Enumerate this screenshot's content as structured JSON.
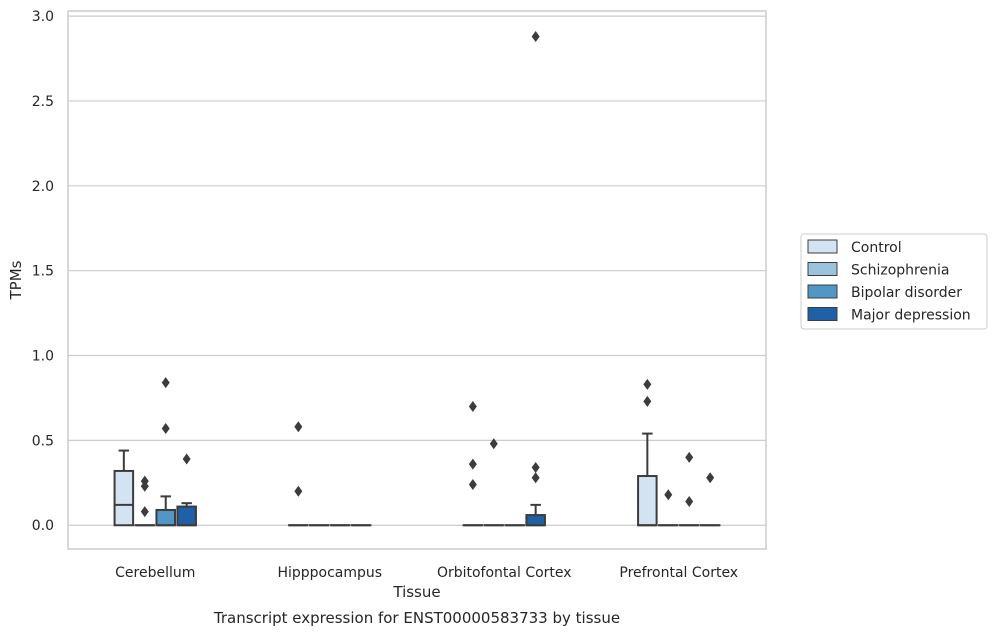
{
  "chart_data": {
    "type": "box",
    "caption": "Transcript expression for ENST00000583733 by tissue",
    "xlabel": "Tissue",
    "ylabel": "TPMs",
    "ylim": [
      -0.14,
      3.03
    ],
    "yticks": [
      0.0,
      0.5,
      1.0,
      1.5,
      2.0,
      2.5,
      3.0
    ],
    "ytick_labels": [
      "0.0",
      "0.5",
      "1.0",
      "1.5",
      "2.0",
      "2.5",
      "3.0"
    ],
    "grid": "horizontal",
    "legend_position": "right",
    "categories": [
      "Cerebellum",
      "Hipppocampus",
      "Orbitofontal Cortex",
      "Prefrontal Cortex"
    ],
    "series": [
      {
        "name": "Control",
        "color": "#d4e3f2",
        "boxes": [
          {
            "q1": 0.0,
            "median": 0.12,
            "q3": 0.32,
            "whisker_low": 0.0,
            "whisker_high": 0.44,
            "fliers": []
          },
          {
            "q1": 0.0,
            "median": 0.0,
            "q3": 0.0,
            "whisker_low": 0.0,
            "whisker_high": 0.0,
            "fliers": [
              0.58,
              0.2
            ]
          },
          {
            "q1": 0.0,
            "median": 0.0,
            "q3": 0.0,
            "whisker_low": 0.0,
            "whisker_high": 0.0,
            "fliers": [
              0.7,
              0.36,
              0.24
            ]
          },
          {
            "q1": 0.0,
            "median": 0.0,
            "q3": 0.29,
            "whisker_low": 0.0,
            "whisker_high": 0.54,
            "fliers": [
              0.83,
              0.73
            ]
          }
        ]
      },
      {
        "name": "Schizophrenia",
        "color": "#9bc3de",
        "boxes": [
          {
            "q1": 0.0,
            "median": 0.0,
            "q3": 0.0,
            "whisker_low": 0.0,
            "whisker_high": 0.0,
            "fliers": [
              0.26,
              0.23,
              0.08
            ]
          },
          {
            "q1": 0.0,
            "median": 0.0,
            "q3": 0.0,
            "whisker_low": 0.0,
            "whisker_high": 0.0,
            "fliers": []
          },
          {
            "q1": 0.0,
            "median": 0.0,
            "q3": 0.0,
            "whisker_low": 0.0,
            "whisker_high": 0.0,
            "fliers": [
              0.48
            ]
          },
          {
            "q1": 0.0,
            "median": 0.0,
            "q3": 0.0,
            "whisker_low": 0.0,
            "whisker_high": 0.0,
            "fliers": [
              0.18
            ]
          }
        ]
      },
      {
        "name": "Bipolar disorder",
        "color": "#5296c6",
        "boxes": [
          {
            "q1": 0.0,
            "median": 0.0,
            "q3": 0.09,
            "whisker_low": 0.0,
            "whisker_high": 0.17,
            "fliers": [
              0.84,
              0.57
            ]
          },
          {
            "q1": 0.0,
            "median": 0.0,
            "q3": 0.0,
            "whisker_low": 0.0,
            "whisker_high": 0.0,
            "fliers": []
          },
          {
            "q1": 0.0,
            "median": 0.0,
            "q3": 0.0,
            "whisker_low": 0.0,
            "whisker_high": 0.0,
            "fliers": []
          },
          {
            "q1": 0.0,
            "median": 0.0,
            "q3": 0.0,
            "whisker_low": 0.0,
            "whisker_high": 0.0,
            "fliers": [
              0.4,
              0.14
            ]
          }
        ]
      },
      {
        "name": "Major depression",
        "color": "#2060a7",
        "boxes": [
          {
            "q1": 0.0,
            "median": 0.0,
            "q3": 0.11,
            "whisker_low": 0.0,
            "whisker_high": 0.13,
            "fliers": [
              0.39
            ]
          },
          {
            "q1": 0.0,
            "median": 0.0,
            "q3": 0.0,
            "whisker_low": 0.0,
            "whisker_high": 0.0,
            "fliers": []
          },
          {
            "q1": 0.0,
            "median": 0.0,
            "q3": 0.06,
            "whisker_low": 0.0,
            "whisker_high": 0.12,
            "fliers": [
              2.88,
              0.34,
              0.28
            ]
          },
          {
            "q1": 0.0,
            "median": 0.0,
            "q3": 0.0,
            "whisker_low": 0.0,
            "whisker_high": 0.0,
            "fliers": [
              0.28
            ]
          }
        ]
      }
    ]
  }
}
